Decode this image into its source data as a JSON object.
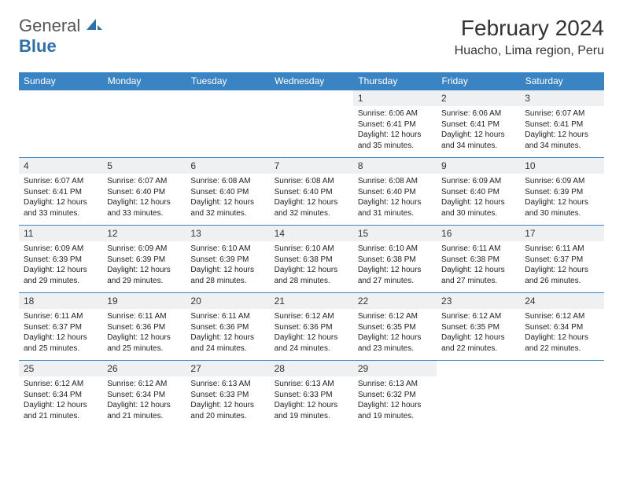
{
  "logo": {
    "text1": "General",
    "text2": "Blue",
    "icon_color": "#2f6fa8"
  },
  "title": "February 2024",
  "location": "Huacho, Lima region, Peru",
  "colors": {
    "header_bg": "#3b84c4",
    "header_fg": "#ffffff",
    "daynum_bg": "#eef0f1",
    "border": "#3b84c4",
    "text": "#222222"
  },
  "typography": {
    "title_fontsize": 28,
    "location_fontsize": 16,
    "dayheader_fontsize": 12,
    "daycontent_fontsize": 10
  },
  "layout": {
    "columns": 7,
    "rows": 5
  },
  "day_headers": [
    "Sunday",
    "Monday",
    "Tuesday",
    "Wednesday",
    "Thursday",
    "Friday",
    "Saturday"
  ],
  "weeks": [
    [
      {
        "num": "",
        "sunrise": "",
        "sunset": "",
        "daylight": ""
      },
      {
        "num": "",
        "sunrise": "",
        "sunset": "",
        "daylight": ""
      },
      {
        "num": "",
        "sunrise": "",
        "sunset": "",
        "daylight": ""
      },
      {
        "num": "",
        "sunrise": "",
        "sunset": "",
        "daylight": ""
      },
      {
        "num": "1",
        "sunrise": "Sunrise: 6:06 AM",
        "sunset": "Sunset: 6:41 PM",
        "daylight": "Daylight: 12 hours and 35 minutes."
      },
      {
        "num": "2",
        "sunrise": "Sunrise: 6:06 AM",
        "sunset": "Sunset: 6:41 PM",
        "daylight": "Daylight: 12 hours and 34 minutes."
      },
      {
        "num": "3",
        "sunrise": "Sunrise: 6:07 AM",
        "sunset": "Sunset: 6:41 PM",
        "daylight": "Daylight: 12 hours and 34 minutes."
      }
    ],
    [
      {
        "num": "4",
        "sunrise": "Sunrise: 6:07 AM",
        "sunset": "Sunset: 6:41 PM",
        "daylight": "Daylight: 12 hours and 33 minutes."
      },
      {
        "num": "5",
        "sunrise": "Sunrise: 6:07 AM",
        "sunset": "Sunset: 6:40 PM",
        "daylight": "Daylight: 12 hours and 33 minutes."
      },
      {
        "num": "6",
        "sunrise": "Sunrise: 6:08 AM",
        "sunset": "Sunset: 6:40 PM",
        "daylight": "Daylight: 12 hours and 32 minutes."
      },
      {
        "num": "7",
        "sunrise": "Sunrise: 6:08 AM",
        "sunset": "Sunset: 6:40 PM",
        "daylight": "Daylight: 12 hours and 32 minutes."
      },
      {
        "num": "8",
        "sunrise": "Sunrise: 6:08 AM",
        "sunset": "Sunset: 6:40 PM",
        "daylight": "Daylight: 12 hours and 31 minutes."
      },
      {
        "num": "9",
        "sunrise": "Sunrise: 6:09 AM",
        "sunset": "Sunset: 6:40 PM",
        "daylight": "Daylight: 12 hours and 30 minutes."
      },
      {
        "num": "10",
        "sunrise": "Sunrise: 6:09 AM",
        "sunset": "Sunset: 6:39 PM",
        "daylight": "Daylight: 12 hours and 30 minutes."
      }
    ],
    [
      {
        "num": "11",
        "sunrise": "Sunrise: 6:09 AM",
        "sunset": "Sunset: 6:39 PM",
        "daylight": "Daylight: 12 hours and 29 minutes."
      },
      {
        "num": "12",
        "sunrise": "Sunrise: 6:09 AM",
        "sunset": "Sunset: 6:39 PM",
        "daylight": "Daylight: 12 hours and 29 minutes."
      },
      {
        "num": "13",
        "sunrise": "Sunrise: 6:10 AM",
        "sunset": "Sunset: 6:39 PM",
        "daylight": "Daylight: 12 hours and 28 minutes."
      },
      {
        "num": "14",
        "sunrise": "Sunrise: 6:10 AM",
        "sunset": "Sunset: 6:38 PM",
        "daylight": "Daylight: 12 hours and 28 minutes."
      },
      {
        "num": "15",
        "sunrise": "Sunrise: 6:10 AM",
        "sunset": "Sunset: 6:38 PM",
        "daylight": "Daylight: 12 hours and 27 minutes."
      },
      {
        "num": "16",
        "sunrise": "Sunrise: 6:11 AM",
        "sunset": "Sunset: 6:38 PM",
        "daylight": "Daylight: 12 hours and 27 minutes."
      },
      {
        "num": "17",
        "sunrise": "Sunrise: 6:11 AM",
        "sunset": "Sunset: 6:37 PM",
        "daylight": "Daylight: 12 hours and 26 minutes."
      }
    ],
    [
      {
        "num": "18",
        "sunrise": "Sunrise: 6:11 AM",
        "sunset": "Sunset: 6:37 PM",
        "daylight": "Daylight: 12 hours and 25 minutes."
      },
      {
        "num": "19",
        "sunrise": "Sunrise: 6:11 AM",
        "sunset": "Sunset: 6:36 PM",
        "daylight": "Daylight: 12 hours and 25 minutes."
      },
      {
        "num": "20",
        "sunrise": "Sunrise: 6:11 AM",
        "sunset": "Sunset: 6:36 PM",
        "daylight": "Daylight: 12 hours and 24 minutes."
      },
      {
        "num": "21",
        "sunrise": "Sunrise: 6:12 AM",
        "sunset": "Sunset: 6:36 PM",
        "daylight": "Daylight: 12 hours and 24 minutes."
      },
      {
        "num": "22",
        "sunrise": "Sunrise: 6:12 AM",
        "sunset": "Sunset: 6:35 PM",
        "daylight": "Daylight: 12 hours and 23 minutes."
      },
      {
        "num": "23",
        "sunrise": "Sunrise: 6:12 AM",
        "sunset": "Sunset: 6:35 PM",
        "daylight": "Daylight: 12 hours and 22 minutes."
      },
      {
        "num": "24",
        "sunrise": "Sunrise: 6:12 AM",
        "sunset": "Sunset: 6:34 PM",
        "daylight": "Daylight: 12 hours and 22 minutes."
      }
    ],
    [
      {
        "num": "25",
        "sunrise": "Sunrise: 6:12 AM",
        "sunset": "Sunset: 6:34 PM",
        "daylight": "Daylight: 12 hours and 21 minutes."
      },
      {
        "num": "26",
        "sunrise": "Sunrise: 6:12 AM",
        "sunset": "Sunset: 6:34 PM",
        "daylight": "Daylight: 12 hours and 21 minutes."
      },
      {
        "num": "27",
        "sunrise": "Sunrise: 6:13 AM",
        "sunset": "Sunset: 6:33 PM",
        "daylight": "Daylight: 12 hours and 20 minutes."
      },
      {
        "num": "28",
        "sunrise": "Sunrise: 6:13 AM",
        "sunset": "Sunset: 6:33 PM",
        "daylight": "Daylight: 12 hours and 19 minutes."
      },
      {
        "num": "29",
        "sunrise": "Sunrise: 6:13 AM",
        "sunset": "Sunset: 6:32 PM",
        "daylight": "Daylight: 12 hours and 19 minutes."
      },
      {
        "num": "",
        "sunrise": "",
        "sunset": "",
        "daylight": ""
      },
      {
        "num": "",
        "sunrise": "",
        "sunset": "",
        "daylight": ""
      }
    ]
  ]
}
